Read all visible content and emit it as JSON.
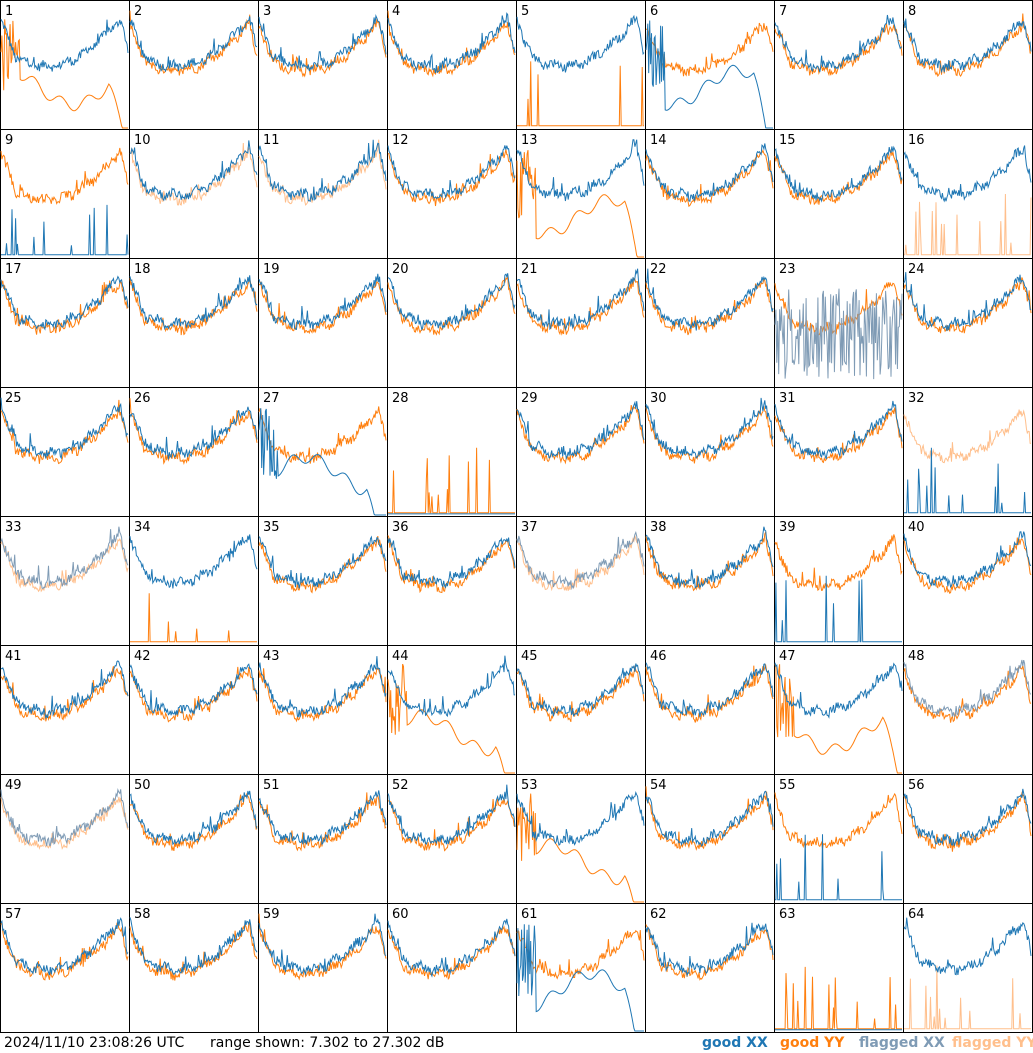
{
  "footer": {
    "timestamp": "2024/11/10 23:08:26 UTC",
    "range": "range shown: 7.302 to 27.302 dB"
  },
  "legend": {
    "good_xx": "good XX",
    "good_yy": "good YY",
    "flagged_xx": "flagged XX",
    "flagged_yy": "flagged YY"
  },
  "colors": {
    "good_xx": "#1f77b4",
    "good_yy": "#ff7f0e",
    "flagged_xx": "#7f9bb5",
    "flagged_yy": "#ffbf8c"
  },
  "chart_data": {
    "type": "line",
    "description": "64 tile spectra, each showing XX and YY power vs frequency",
    "y_range_db": [
      7.302,
      27.302
    ],
    "panels": [
      {
        "label": "1",
        "xx": "good",
        "yy": "good",
        "yy_shape": "drop"
      },
      {
        "label": "2",
        "xx": "good",
        "yy": "good"
      },
      {
        "label": "3",
        "xx": "good",
        "yy": "good"
      },
      {
        "label": "4",
        "xx": "good",
        "yy": "good"
      },
      {
        "label": "5",
        "xx": "good",
        "yy": "good",
        "yy_shape": "dead"
      },
      {
        "label": "6",
        "xx": "good",
        "yy": "good",
        "xx_shape": "drop"
      },
      {
        "label": "7",
        "xx": "good",
        "yy": "good"
      },
      {
        "label": "8",
        "xx": "good",
        "yy": "good"
      },
      {
        "label": "9",
        "xx": "good",
        "yy": "good",
        "xx_shape": "dead"
      },
      {
        "label": "10",
        "xx": "good",
        "yy": "flagged"
      },
      {
        "label": "11",
        "xx": "good",
        "yy": "flagged"
      },
      {
        "label": "12",
        "xx": "good",
        "yy": "good"
      },
      {
        "label": "13",
        "xx": "good",
        "yy": "good",
        "yy_shape": "drop"
      },
      {
        "label": "14",
        "xx": "good",
        "yy": "good"
      },
      {
        "label": "15",
        "xx": "good",
        "yy": "good"
      },
      {
        "label": "16",
        "xx": "good",
        "yy": "flagged",
        "yy_shape": "dead"
      },
      {
        "label": "17",
        "xx": "good",
        "yy": "good"
      },
      {
        "label": "18",
        "xx": "good",
        "yy": "good"
      },
      {
        "label": "19",
        "xx": "good",
        "yy": "good"
      },
      {
        "label": "20",
        "xx": "good",
        "yy": "good"
      },
      {
        "label": "21",
        "xx": "good",
        "yy": "good"
      },
      {
        "label": "22",
        "xx": "good",
        "yy": "good"
      },
      {
        "label": "23",
        "xx": "flagged",
        "yy": "good",
        "xx_shape": "noisy"
      },
      {
        "label": "24",
        "xx": "good",
        "yy": "good"
      },
      {
        "label": "25",
        "xx": "good",
        "yy": "good"
      },
      {
        "label": "26",
        "xx": "good",
        "yy": "good"
      },
      {
        "label": "27",
        "xx": "good",
        "yy": "good",
        "xx_shape": "drop"
      },
      {
        "label": "28",
        "xx": "good",
        "yy": "good",
        "yy_shape": "dead",
        "xx_shape": "flat"
      },
      {
        "label": "29",
        "xx": "good",
        "yy": "good"
      },
      {
        "label": "30",
        "xx": "good",
        "yy": "good"
      },
      {
        "label": "31",
        "xx": "good",
        "yy": "good"
      },
      {
        "label": "32",
        "xx": "good",
        "yy": "flagged",
        "xx_shape": "dead"
      },
      {
        "label": "33",
        "xx": "flagged",
        "yy": "flagged"
      },
      {
        "label": "34",
        "xx": "good",
        "yy": "good",
        "yy_shape": "dead"
      },
      {
        "label": "35",
        "xx": "good",
        "yy": "good"
      },
      {
        "label": "36",
        "xx": "good",
        "yy": "good"
      },
      {
        "label": "37",
        "xx": "flagged",
        "yy": "flagged"
      },
      {
        "label": "38",
        "xx": "good",
        "yy": "good"
      },
      {
        "label": "39",
        "xx": "good",
        "yy": "good",
        "xx_shape": "dead"
      },
      {
        "label": "40",
        "xx": "good",
        "yy": "good"
      },
      {
        "label": "41",
        "xx": "good",
        "yy": "good"
      },
      {
        "label": "42",
        "xx": "good",
        "yy": "good"
      },
      {
        "label": "43",
        "xx": "good",
        "yy": "good"
      },
      {
        "label": "44",
        "xx": "good",
        "yy": "good",
        "yy_shape": "drop"
      },
      {
        "label": "45",
        "xx": "good",
        "yy": "good"
      },
      {
        "label": "46",
        "xx": "good",
        "yy": "good"
      },
      {
        "label": "47",
        "xx": "good",
        "yy": "good",
        "yy_shape": "drop"
      },
      {
        "label": "48",
        "xx": "flagged",
        "yy": "good"
      },
      {
        "label": "49",
        "xx": "flagged",
        "yy": "flagged"
      },
      {
        "label": "50",
        "xx": "good",
        "yy": "good"
      },
      {
        "label": "51",
        "xx": "good",
        "yy": "good"
      },
      {
        "label": "52",
        "xx": "good",
        "yy": "good"
      },
      {
        "label": "53",
        "xx": "good",
        "yy": "good",
        "yy_shape": "drop"
      },
      {
        "label": "54",
        "xx": "good",
        "yy": "good"
      },
      {
        "label": "55",
        "xx": "good",
        "yy": "good",
        "xx_shape": "dead"
      },
      {
        "label": "56",
        "xx": "good",
        "yy": "good"
      },
      {
        "label": "57",
        "xx": "good",
        "yy": "good"
      },
      {
        "label": "58",
        "xx": "good",
        "yy": "good"
      },
      {
        "label": "59",
        "xx": "good",
        "yy": "good"
      },
      {
        "label": "60",
        "xx": "good",
        "yy": "good"
      },
      {
        "label": "61",
        "xx": "good",
        "yy": "good",
        "xx_shape": "drop"
      },
      {
        "label": "62",
        "xx": "good",
        "yy": "good"
      },
      {
        "label": "63",
        "xx": "good",
        "yy": "good",
        "yy_shape": "dead",
        "xx_shape": "flat"
      },
      {
        "label": "64",
        "xx": "good",
        "yy": "flagged",
        "yy_shape": "dead"
      }
    ]
  }
}
